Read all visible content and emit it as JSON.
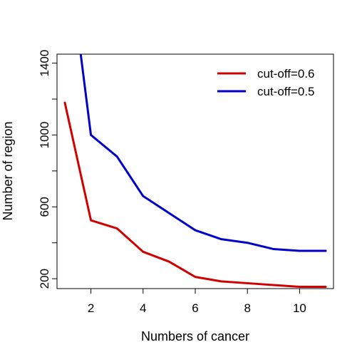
{
  "chart_data": {
    "type": "line",
    "title": "",
    "xlabel": "Numbers of cancer",
    "ylabel": "Number of region",
    "xlim": [
      0.7,
      11.3
    ],
    "ylim": [
      145,
      1450
    ],
    "xticks": [
      2,
      4,
      6,
      8,
      10
    ],
    "yticks": [
      200,
      600,
      1000,
      1400
    ],
    "grid": false,
    "legend_position": "top-right",
    "x": [
      1,
      2,
      3,
      4,
      5,
      6,
      7,
      8,
      9,
      10,
      11
    ],
    "series": [
      {
        "name": "cut-off=0.6",
        "color": "#d00000",
        "values": [
          1180,
          525,
          480,
          350,
          295,
          210,
          185,
          175,
          165,
          155,
          155
        ]
      },
      {
        "name": "cut-off=0.5",
        "color": "#0000c8",
        "x": [
          1.6,
          2,
          3,
          4,
          5,
          6,
          7,
          8,
          9,
          10,
          11
        ],
        "values": [
          1460,
          1000,
          880,
          660,
          565,
          470,
          420,
          400,
          365,
          355,
          355
        ]
      }
    ]
  }
}
